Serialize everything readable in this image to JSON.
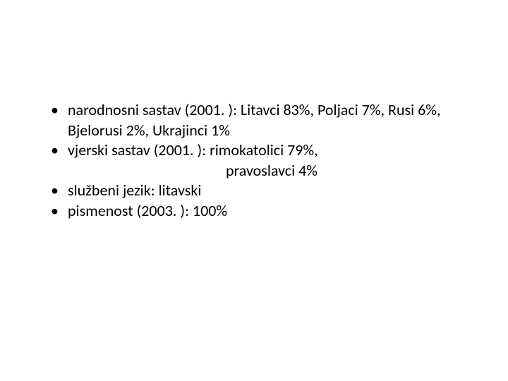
{
  "slide": {
    "background_color": "#ffffff",
    "text_color": "#000000",
    "font_family": "Calibri",
    "font_size_pt": 22,
    "bullets": [
      {
        "text": "narodnosni sastav (2001. ): Litavci 83%, Poljaci 7%, Rusi 6%, Bjelorusi 2%, Ukrajinci 1%"
      },
      {
        "text": "vjerski sastav (2001. ): rimokatolici 79%,",
        "continuation": "pravoslavci 4%"
      },
      {
        "text": "službeni jezik: litavski"
      },
      {
        "text": "pismenost (2003. ): 100%"
      }
    ]
  }
}
